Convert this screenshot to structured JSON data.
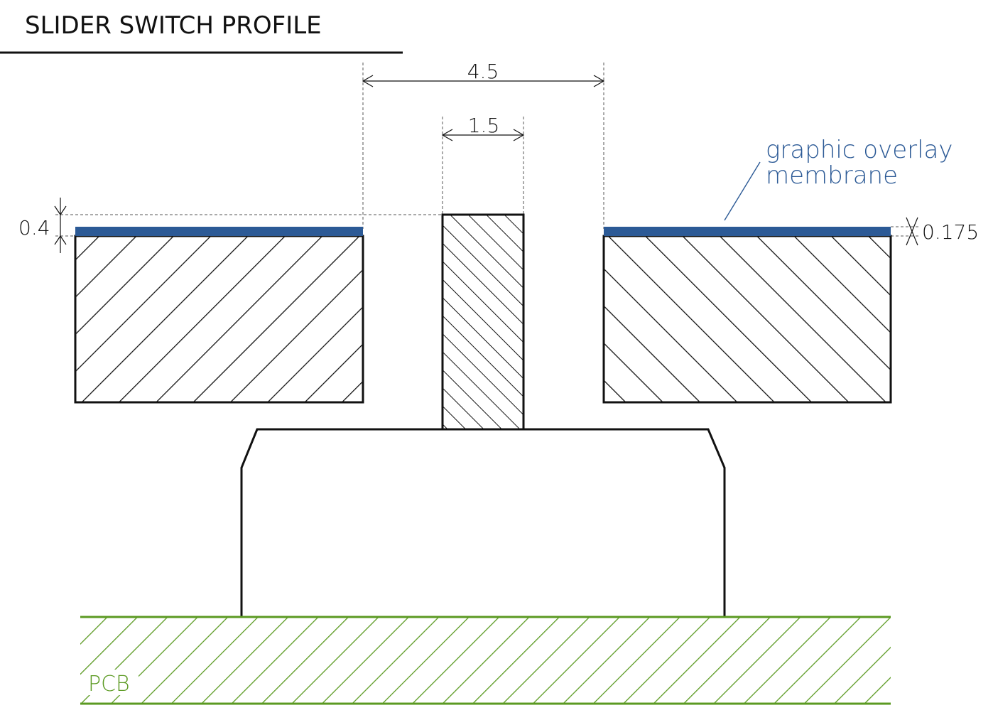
{
  "title": "SLIDER SWITCH PROFILE",
  "dimensions": {
    "gap_width": "4.5",
    "knob_width": "1.5",
    "knob_protrusion": "0.4",
    "membrane_thickness": "0.175"
  },
  "labels": {
    "overlay_line1": "graphic overlay",
    "overlay_line2": "membrane",
    "pcb": "PCB"
  },
  "colors": {
    "membrane": "#2c5a96",
    "pcb": "#5b9a22",
    "outline": "#111111"
  }
}
